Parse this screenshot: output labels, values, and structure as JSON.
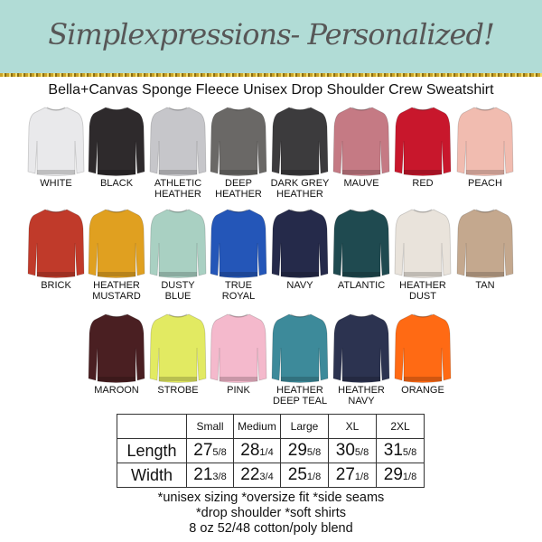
{
  "header": {
    "brand": "Simplexpressions- Personalized!",
    "subtitle": "Bella+Canvas Sponge Fleece Unisex Drop Shoulder Crew Sweatshirt",
    "banner_color": "#b1dcd6",
    "accent_color": "#c9a227"
  },
  "colors": [
    {
      "name": "WHITE",
      "hex": "#e9e9eb"
    },
    {
      "name": "BLACK",
      "hex": "#2e2a2c"
    },
    {
      "name": "ATHLETIC\nHEATHER",
      "hex": "#c6c6ca"
    },
    {
      "name": "DEEP\nHEATHER",
      "hex": "#6a6866"
    },
    {
      "name": "DARK GREY\nHEATHER",
      "hex": "#3c3b3d"
    },
    {
      "name": "MAUVE",
      "hex": "#c57a84"
    },
    {
      "name": "RED",
      "hex": "#c8172c"
    },
    {
      "name": "PEACH",
      "hex": "#f1bcb0"
    },
    {
      "name": "BRICK",
      "hex": "#c03a2a"
    },
    {
      "name": "HEATHER\nMUSTARD",
      "hex": "#e0a020"
    },
    {
      "name": "DUSTY\nBLUE",
      "hex": "#a9d0c2"
    },
    {
      "name": "TRUE\nROYAL",
      "hex": "#2456b8"
    },
    {
      "name": "NAVY",
      "hex": "#252a4a"
    },
    {
      "name": "ATLANTIC",
      "hex": "#1f4a50"
    },
    {
      "name": "HEATHER\nDUST",
      "hex": "#e9e3db"
    },
    {
      "name": "TAN",
      "hex": "#c4a88e"
    },
    {
      "name": "MAROON",
      "hex": "#4a1f22"
    },
    {
      "name": "STROBE",
      "hex": "#e2ea62"
    },
    {
      "name": "PINK",
      "hex": "#f4b9cc"
    },
    {
      "name": "HEATHER\nDEEP TEAL",
      "hex": "#3d8a9a"
    },
    {
      "name": "HEATHER\nNAVY",
      "hex": "#2c3350"
    },
    {
      "name": "ORANGE",
      "hex": "#ff6a14"
    }
  ],
  "size_table": {
    "columns": [
      "",
      "Small",
      "Medium",
      "Large",
      "XL",
      "2XL"
    ],
    "rows": [
      {
        "label": "Length",
        "values": [
          [
            "27",
            "5/8"
          ],
          [
            "28",
            "1/4"
          ],
          [
            "29",
            "5/8"
          ],
          [
            "30",
            "5/8"
          ],
          [
            "31",
            "5/8"
          ]
        ]
      },
      {
        "label": "Width",
        "values": [
          [
            "21",
            "3/8"
          ],
          [
            "22",
            "3/4"
          ],
          [
            "25",
            "1/8"
          ],
          [
            "27",
            "1/8"
          ],
          [
            "29",
            "1/8"
          ]
        ]
      }
    ]
  },
  "notes": [
    "*unisex sizing *oversize fit *side seams",
    "*drop shoulder *soft shirts",
    "8 oz 52/48 cotton/poly blend"
  ]
}
